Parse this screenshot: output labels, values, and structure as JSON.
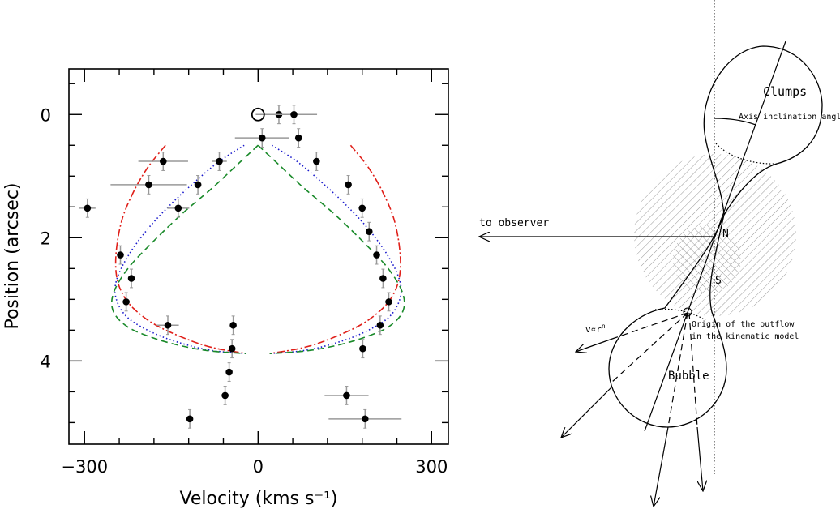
{
  "chart_data": {
    "type": "scatter",
    "xlabel": "Velocity (kms s⁻¹)",
    "ylabel": "Position (arcsec)",
    "xlim": [
      -327,
      329
    ],
    "ylim": [
      5.35,
      -0.74
    ],
    "y_inverted": true,
    "x_ticks": [
      -300,
      0,
      300
    ],
    "x_minor_step": 60,
    "y_ticks": [
      0,
      2,
      4
    ],
    "y_minor_step": 0.5,
    "grid": false,
    "reference_point": {
      "x": 0,
      "y": 0,
      "marker": "open-circle"
    },
    "points": [
      {
        "x": 36,
        "y": 0.0,
        "xerr": 40,
        "yerr": 0.15
      },
      {
        "x": 62,
        "y": 0.0,
        "xerr": 40,
        "yerr": 0.15
      },
      {
        "x": 7,
        "y": 0.38,
        "xerr": 47,
        "yerr": 0.15
      },
      {
        "x": 70,
        "y": 0.38,
        "xerr": 5,
        "yerr": 0.15
      },
      {
        "x": -164,
        "y": 0.76,
        "xerr": 43,
        "yerr": 0.15
      },
      {
        "x": -67,
        "y": 0.76,
        "xerr": 13,
        "yerr": 0.15
      },
      {
        "x": 101,
        "y": 0.76,
        "xerr": 3,
        "yerr": 0.15
      },
      {
        "x": -189,
        "y": 1.14,
        "xerr": 66,
        "yerr": 0.15
      },
      {
        "x": -104,
        "y": 1.14,
        "xerr": 6,
        "yerr": 0.15
      },
      {
        "x": 156,
        "y": 1.14,
        "xerr": 3,
        "yerr": 0.15
      },
      {
        "x": -295,
        "y": 1.52,
        "xerr": 14,
        "yerr": 0.15
      },
      {
        "x": -138,
        "y": 1.52,
        "xerr": 19,
        "yerr": 0.15
      },
      {
        "x": 180,
        "y": 1.52,
        "xerr": 3,
        "yerr": 0.15
      },
      {
        "x": 192,
        "y": 1.9,
        "xerr": 3,
        "yerr": 0.15
      },
      {
        "x": -238,
        "y": 2.28,
        "xerr": 3,
        "yerr": 0.15
      },
      {
        "x": 205,
        "y": 2.28,
        "xerr": 3,
        "yerr": 0.15
      },
      {
        "x": -219,
        "y": 2.66,
        "xerr": 3,
        "yerr": 0.15
      },
      {
        "x": 216,
        "y": 2.66,
        "xerr": 3,
        "yerr": 0.15
      },
      {
        "x": -228,
        "y": 3.04,
        "xerr": 3,
        "yerr": 0.15
      },
      {
        "x": 226,
        "y": 3.04,
        "xerr": 3,
        "yerr": 0.15
      },
      {
        "x": -156,
        "y": 3.42,
        "xerr": 19,
        "yerr": 0.15
      },
      {
        "x": -43,
        "y": 3.42,
        "xerr": 3,
        "yerr": 0.15
      },
      {
        "x": 211,
        "y": 3.42,
        "xerr": 3,
        "yerr": 0.15
      },
      {
        "x": -45,
        "y": 3.8,
        "xerr": 3,
        "yerr": 0.15
      },
      {
        "x": 181,
        "y": 3.8,
        "xerr": 3,
        "yerr": 0.15
      },
      {
        "x": -50,
        "y": 4.18,
        "xerr": 3,
        "yerr": 0.15
      },
      {
        "x": -57,
        "y": 4.56,
        "xerr": 3,
        "yerr": 0.15
      },
      {
        "x": 153,
        "y": 4.56,
        "xerr": 38,
        "yerr": 0.15
      },
      {
        "x": -118,
        "y": 4.94,
        "xerr": 3,
        "yerr": 0.15
      },
      {
        "x": 185,
        "y": 4.94,
        "xerr": 63,
        "yerr": 0.15
      }
    ],
    "models": [
      {
        "style": "dash-dot",
        "color": "#e0201a",
        "left": [
          [
            -160,
            0.5
          ],
          [
            -190,
            0.85
          ],
          [
            -215,
            1.25
          ],
          [
            -235,
            1.7
          ],
          [
            -245,
            2.2
          ],
          [
            -245,
            2.6
          ],
          [
            -235,
            2.9
          ],
          [
            -215,
            3.15
          ],
          [
            -180,
            3.4
          ],
          [
            -130,
            3.62
          ],
          [
            -80,
            3.78
          ],
          [
            -20,
            3.88
          ]
        ]
      },
      {
        "style": "dotted",
        "color": "#1a1acc",
        "left": [
          [
            -24,
            0.5
          ],
          [
            -67,
            0.76
          ],
          [
            -110,
            1.1
          ],
          [
            -150,
            1.45
          ],
          [
            -190,
            1.85
          ],
          [
            -225,
            2.3
          ],
          [
            -245,
            2.7
          ],
          [
            -245,
            3.0
          ],
          [
            -225,
            3.3
          ],
          [
            -180,
            3.55
          ],
          [
            -130,
            3.72
          ],
          [
            -80,
            3.83
          ],
          [
            -20,
            3.88
          ]
        ]
      },
      {
        "style": "dashed",
        "color": "#1a8a2a",
        "left": [
          [
            0,
            0.5
          ],
          [
            -40,
            0.85
          ],
          [
            -80,
            1.2
          ],
          [
            -130,
            1.6
          ],
          [
            -180,
            2.05
          ],
          [
            -225,
            2.5
          ],
          [
            -250,
            2.9
          ],
          [
            -250,
            3.2
          ],
          [
            -225,
            3.45
          ],
          [
            -180,
            3.63
          ],
          [
            -130,
            3.76
          ],
          [
            -80,
            3.84
          ],
          [
            -20,
            3.88
          ]
        ]
      }
    ]
  },
  "diagram": {
    "clumps_label": "Clumps",
    "angle_label": "Axis inclination angle",
    "observer_label": "to observer",
    "n_label": "N",
    "s_label": "S",
    "velocity_law_label": "v∝r",
    "velocity_law_exponent": "n",
    "origin_label_line1": "Origin of the outflow",
    "origin_label_line2": "in the kinematic model",
    "bubble_label": "Bubble"
  }
}
